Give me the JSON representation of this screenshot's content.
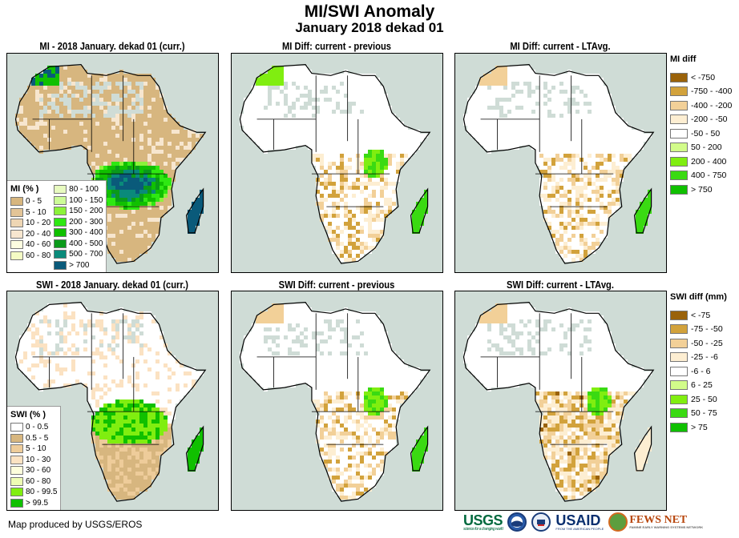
{
  "header": {
    "title": "MI/SWI Anomaly",
    "subtitle": "January 2018 dekad 01"
  },
  "panels": [
    {
      "id": "mi-current",
      "title": "MI - 2018 January. dekad 01 (curr.)",
      "variable": "MI",
      "kind": "current"
    },
    {
      "id": "mi-diff-prev",
      "title": "MI Diff: current - previous",
      "variable": "MI",
      "kind": "diff-previous"
    },
    {
      "id": "mi-diff-lta",
      "title": "MI Diff: current - LTAvg.",
      "variable": "MI",
      "kind": "diff-ltavg"
    },
    {
      "id": "swi-current",
      "title": "SWI - 2018 January. dekad 01 (curr.)",
      "variable": "SWI",
      "kind": "current"
    },
    {
      "id": "swi-diff-prev",
      "title": "SWI Diff: current - previous",
      "variable": "SWI",
      "kind": "diff-previous"
    },
    {
      "id": "swi-diff-lta",
      "title": "SWI Diff: current - LTAvg.",
      "variable": "SWI",
      "kind": "diff-ltavg"
    }
  ],
  "legends": {
    "mi_current": {
      "title": "MI (% )",
      "items": [
        {
          "label": "0 - 5",
          "color": "#d7b67f"
        },
        {
          "label": "5 - 10",
          "color": "#e3c497"
        },
        {
          "label": "10 - 20",
          "color": "#eed6b4"
        },
        {
          "label": "20 - 40",
          "color": "#f7e6cf"
        },
        {
          "label": "40 - 60",
          "color": "#fdfde0"
        },
        {
          "label": "60 - 80",
          "color": "#f4fbc4"
        },
        {
          "label": "80 - 100",
          "color": "#e8fbc0"
        },
        {
          "label": "100 - 150",
          "color": "#cdfc98"
        },
        {
          "label": "150 - 200",
          "color": "#8cf23a"
        },
        {
          "label": "200 - 300",
          "color": "#2ee812"
        },
        {
          "label": "300 - 400",
          "color": "#10c000"
        },
        {
          "label": "400 - 500",
          "color": "#0a9a1a"
        },
        {
          "label": "500 - 700",
          "color": "#0a8a7a"
        },
        {
          "label": "> 700",
          "color": "#0a5a7a"
        }
      ]
    },
    "swi_current": {
      "title": "SWI (% )",
      "items": [
        {
          "label": "0 - 0.5",
          "color": "#ffffff"
        },
        {
          "label": "0.5 - 5",
          "color": "#d7b67f"
        },
        {
          "label": "5 - 10",
          "color": "#eecc9a"
        },
        {
          "label": "10 - 30",
          "color": "#fbe2c2"
        },
        {
          "label": "30 - 60",
          "color": "#fdfddc"
        },
        {
          "label": "60 - 80",
          "color": "#eefcb4"
        },
        {
          "label": "80 - 99.5",
          "color": "#80ee10"
        },
        {
          "label": "> 99.5",
          "color": "#10c000"
        }
      ]
    },
    "mi_diff": {
      "title": "MI diff",
      "items": [
        {
          "label": "< -750",
          "color": "#9a620a"
        },
        {
          "label": "-750 - -400",
          "color": "#d2a23c"
        },
        {
          "label": "-400 - -200",
          "color": "#f2d098"
        },
        {
          "label": "-200 - -50",
          "color": "#fdeed2"
        },
        {
          "label": "-50 - 50",
          "color": "#ffffff"
        },
        {
          "label": "50 - 200",
          "color": "#d2fc8a"
        },
        {
          "label": "200 - 400",
          "color": "#80ee10"
        },
        {
          "label": "400 - 750",
          "color": "#3ada12"
        },
        {
          "label": "> 750",
          "color": "#10c000"
        }
      ]
    },
    "swi_diff": {
      "title": "SWI diff (mm)",
      "items": [
        {
          "label": "< -75",
          "color": "#9a620a"
        },
        {
          "label": "-75 - -50",
          "color": "#d2a23c"
        },
        {
          "label": "-50 - -25",
          "color": "#f2d098"
        },
        {
          "label": "-25 - -6",
          "color": "#fdeed2"
        },
        {
          "label": "-6 - 6",
          "color": "#ffffff"
        },
        {
          "label": "6 - 25",
          "color": "#d2fc8a"
        },
        {
          "label": "25 - 50",
          "color": "#80ee10"
        },
        {
          "label": "50 - 75",
          "color": "#3ada12"
        },
        {
          "label": "> 75",
          "color": "#10c000"
        }
      ]
    }
  },
  "map_colors": {
    "ocean": "#cfdcd6",
    "border": "#000000"
  },
  "footer": {
    "credit": "Map produced by USGS/EROS",
    "logos": {
      "usgs": "USGS",
      "usgs_tagline": "science for a changing world",
      "noaa": "NOAA",
      "usaid": "USAID",
      "usaid_tagline": "FROM THE AMERICAN PEOPLE",
      "fews": "FEWS NET",
      "fews_tagline": "FAMINE EARLY WARNING SYSTEMS NETWORK"
    }
  }
}
